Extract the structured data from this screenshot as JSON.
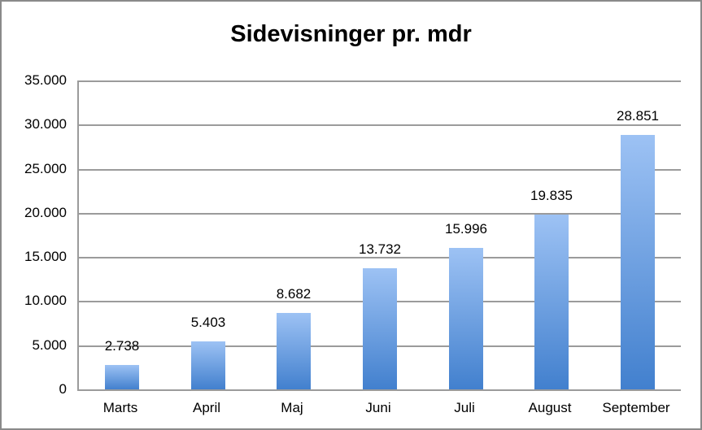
{
  "window": {
    "background": "#ffffff",
    "border_color": "#8a8a8a"
  },
  "chart_data": {
    "type": "bar",
    "title": "Sidevisninger pr. mdr",
    "categories": [
      "Marts",
      "April",
      "Maj",
      "Juni",
      "Juli",
      "August",
      "September"
    ],
    "values": [
      2738,
      5403,
      8682,
      13732,
      15996,
      19835,
      28851
    ],
    "value_labels": [
      "2.738",
      "5.403",
      "8.682",
      "13.732",
      "15.996",
      "19.835",
      "28.851"
    ],
    "xlabel": "",
    "ylabel": "",
    "ylim": [
      0,
      35000
    ],
    "y_ticks": [
      0,
      5000,
      10000,
      15000,
      20000,
      25000,
      30000,
      35000
    ],
    "y_tick_labels": [
      "0",
      "5.000",
      "10.000",
      "15.000",
      "20.000",
      "25.000",
      "30.000",
      "35.000"
    ],
    "grid": true,
    "legend": "none",
    "colors": {
      "bar_top": "#9dc2f4",
      "bar_bottom": "#4280ce",
      "gridline": "#9b9b9b",
      "text": "#000000"
    }
  }
}
